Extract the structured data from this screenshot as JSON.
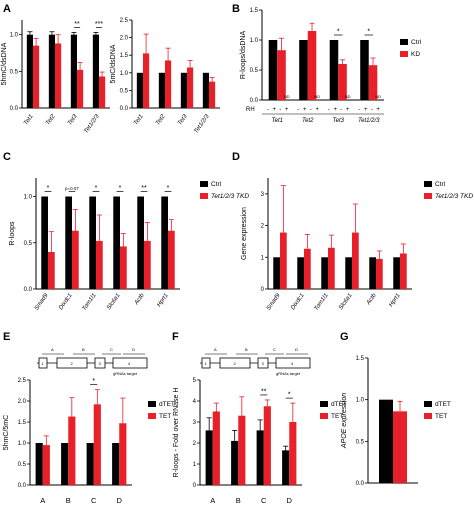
{
  "panels": {
    "A": {
      "letter": "A"
    },
    "B": {
      "letter": "B"
    },
    "C": {
      "letter": "C"
    },
    "D": {
      "letter": "D"
    },
    "E": {
      "letter": "E"
    },
    "F": {
      "letter": "F"
    },
    "G": {
      "letter": "G"
    }
  },
  "gene_diagram": {
    "regions": [
      "A",
      "B",
      "C",
      "D"
    ],
    "exons": [
      "1",
      "2",
      "3",
      "4"
    ],
    "target_label": "gRNAs target"
  },
  "chart_data": [
    {
      "panel": "A-left",
      "type": "bar",
      "ylabel": "5hmC/dsDNA",
      "ylim": [
        0,
        1.2
      ],
      "yticks": [
        0,
        0.5,
        1.0
      ],
      "categories": [
        "Tet1",
        "Tet2",
        "Tet3",
        "Tet1/2/3"
      ],
      "series": [
        {
          "name": "Ctrl",
          "color": "#000000",
          "values": [
            1.0,
            1.0,
            1.0,
            1.0
          ],
          "errors": [
            0.04,
            0.04,
            0.03,
            0.03
          ]
        },
        {
          "name": "KD",
          "color": "#e8202a",
          "values": [
            0.85,
            0.88,
            0.52,
            0.43
          ],
          "errors": [
            0.1,
            0.12,
            0.1,
            0.06
          ]
        }
      ],
      "significance": [
        {
          "category": 2,
          "label": "**"
        },
        {
          "category": 3,
          "label": "***"
        }
      ]
    },
    {
      "panel": "A-right",
      "type": "bar",
      "ylabel": "5mC/dsDNA",
      "ylim": [
        0,
        2.5
      ],
      "yticks": [
        0,
        0.5,
        1.0,
        1.5,
        2.0,
        2.5
      ],
      "categories": [
        "Tet1",
        "Tet2",
        "Tet3",
        "Tet1/2/3"
      ],
      "series": [
        {
          "name": "Ctrl",
          "color": "#000000",
          "values": [
            1.0,
            1.0,
            1.0,
            1.0
          ],
          "errors": [
            0,
            0,
            0,
            0
          ]
        },
        {
          "name": "KD",
          "color": "#e8202a",
          "values": [
            1.55,
            1.35,
            1.15,
            0.75
          ],
          "errors": [
            0.55,
            0.35,
            0.2,
            0.12
          ]
        }
      ]
    },
    {
      "panel": "B",
      "type": "bar",
      "ylabel": "R-loops/dsDNA",
      "ylim": [
        0,
        1.5
      ],
      "yticks": [
        0,
        0.5,
        1.0,
        1.5
      ],
      "categories": [
        "Tet1",
        "Tet2",
        "Tet3",
        "Tet1/2/3"
      ],
      "rh_label": "RH",
      "rh_signs": [
        "-",
        "+",
        "-",
        "+"
      ],
      "nd_label": "ND",
      "legend": [
        "Ctrl",
        "KD"
      ],
      "series": [
        {
          "name": "Ctrl",
          "color": "#000000",
          "values": [
            1.0,
            1.0,
            1.0,
            1.0
          ],
          "errors": [
            0,
            0,
            0,
            0
          ]
        },
        {
          "name": "KD",
          "color": "#e8202a",
          "values": [
            0.83,
            1.15,
            0.6,
            0.58
          ],
          "errors": [
            0.2,
            0.13,
            0.07,
            0.12
          ]
        }
      ],
      "significance": [
        {
          "category": 2,
          "label": "*"
        },
        {
          "category": 3,
          "label": "*"
        }
      ]
    },
    {
      "panel": "C",
      "type": "bar",
      "ylabel": "R-loops",
      "ylim": [
        0,
        1.2
      ],
      "yticks": [
        0.0,
        0.5,
        1.0
      ],
      "categories": [
        "Smad9",
        "Dixdc1",
        "Tom1l1",
        "Slc6a1",
        "Actb",
        "Hprt1"
      ],
      "legend": [
        "Ctrl",
        "Tet1/2/3 TKD"
      ],
      "series": [
        {
          "name": "Ctrl",
          "color": "#000000",
          "values": [
            1.0,
            1.0,
            1.0,
            1.0,
            1.0,
            1.0
          ],
          "errors": [
            0,
            0,
            0,
            0,
            0,
            0
          ]
        },
        {
          "name": "Tet1/2/3 TKD",
          "color": "#e8202a",
          "values": [
            0.4,
            0.63,
            0.52,
            0.46,
            0.52,
            0.63
          ],
          "errors": [
            0.22,
            0.23,
            0.28,
            0.14,
            0.2,
            0.12
          ]
        }
      ],
      "significance": [
        {
          "category": 0,
          "label": "*"
        },
        {
          "category": 1,
          "label": "p=0.07"
        },
        {
          "category": 2,
          "label": "*"
        },
        {
          "category": 3,
          "label": "*"
        },
        {
          "category": 4,
          "label": "**"
        },
        {
          "category": 5,
          "label": "*"
        }
      ]
    },
    {
      "panel": "D",
      "type": "bar",
      "ylabel": "Gene expression",
      "ylim": [
        0,
        3.5
      ],
      "yticks": [
        0,
        1,
        2,
        3
      ],
      "categories": [
        "Smad9",
        "Dixdc1",
        "Tom1l1",
        "Slc6a1",
        "Actb",
        "Hprt1"
      ],
      "legend": [
        "Ctrl",
        "Tet1/2/3 TKD"
      ],
      "series": [
        {
          "name": "Ctrl",
          "color": "#000000",
          "values": [
            1.0,
            1.0,
            1.0,
            1.0,
            1.0,
            1.0
          ],
          "errors": [
            0,
            0,
            0,
            0,
            0,
            0
          ]
        },
        {
          "name": "Tet1/2/3 TKD",
          "color": "#e8202a",
          "values": [
            1.78,
            1.27,
            1.3,
            1.78,
            0.95,
            1.12
          ],
          "errors": [
            1.48,
            0.45,
            0.4,
            0.9,
            0.25,
            0.3
          ]
        }
      ]
    },
    {
      "panel": "E",
      "type": "bar",
      "ylabel": "5hmC/5mC",
      "ylim": [
        0,
        2.5
      ],
      "yticks": [
        0.0,
        0.5,
        1.0,
        1.5,
        2.0,
        2.5
      ],
      "categories": [
        "A",
        "B",
        "C",
        "D"
      ],
      "legend": [
        "dTET",
        "TET"
      ],
      "series": [
        {
          "name": "dTET",
          "color": "#000000",
          "values": [
            1.0,
            1.0,
            1.0,
            1.0
          ],
          "errors": [
            0,
            0,
            0,
            0
          ]
        },
        {
          "name": "TET",
          "color": "#e8202a",
          "values": [
            0.95,
            1.63,
            1.92,
            1.47
          ],
          "errors": [
            0.22,
            0.45,
            0.35,
            0.6
          ]
        }
      ],
      "significance": [
        {
          "category": 2,
          "label": "*"
        }
      ]
    },
    {
      "panel": "F",
      "type": "bar",
      "ylabel": "R-loops - Fold over RNase H",
      "ylim": [
        0,
        5
      ],
      "yticks": [
        0,
        1,
        2,
        3,
        4,
        5
      ],
      "categories": [
        "A",
        "B",
        "C",
        "D"
      ],
      "legend": [
        "dTET",
        "TET"
      ],
      "series": [
        {
          "name": "dTET",
          "color": "#000000",
          "values": [
            2.6,
            2.1,
            2.6,
            1.65
          ],
          "errors": [
            0.6,
            0.5,
            0.5,
            0.2
          ]
        },
        {
          "name": "TET",
          "color": "#e8202a",
          "values": [
            3.5,
            3.3,
            3.75,
            3.0
          ],
          "errors": [
            0.4,
            0.9,
            0.3,
            0.9
          ]
        }
      ],
      "significance": [
        {
          "category": 2,
          "label": "**"
        },
        {
          "category": 3,
          "label": "*"
        }
      ]
    },
    {
      "panel": "G",
      "type": "bar",
      "ylabel": "APOE expression",
      "ylim": [
        0,
        1.5
      ],
      "yticks": [
        0.0,
        0.5,
        1.0,
        1.5
      ],
      "categories": [
        ""
      ],
      "legend": [
        "dTET",
        "TET"
      ],
      "series": [
        {
          "name": "dTET",
          "color": "#000000",
          "values": [
            1.0
          ],
          "errors": [
            0
          ]
        },
        {
          "name": "TET",
          "color": "#e8202a",
          "values": [
            0.86
          ],
          "errors": [
            0.12
          ]
        }
      ]
    }
  ]
}
